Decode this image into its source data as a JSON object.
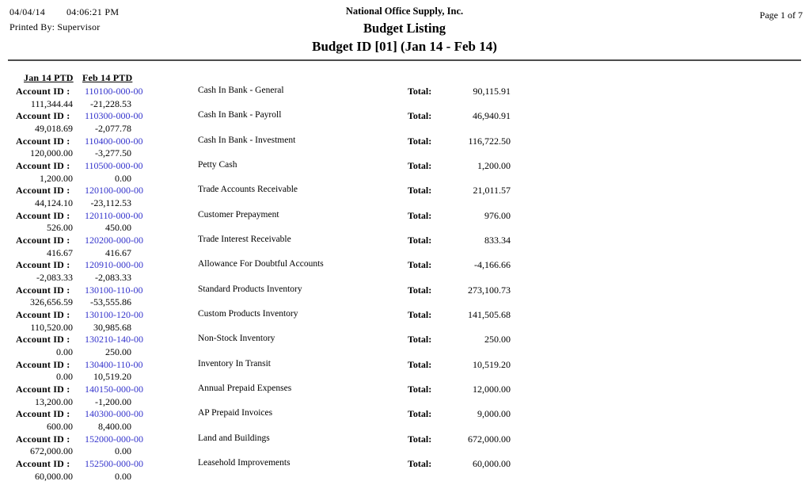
{
  "header": {
    "date": "04/04/14",
    "time": "04:06:21 PM",
    "printed_by": "Printed By: Supervisor",
    "company": "National Office Supply, Inc.",
    "report_title": "Budget Listing",
    "subtitle": "Budget ID [01] (Jan 14 - Feb 14)",
    "page": "Page 1 of 7"
  },
  "columns": {
    "jan": "Jan 14 PTD",
    "feb": "Feb 14 PTD"
  },
  "labels": {
    "account": "Account ID :",
    "total": "Total:"
  },
  "colors": {
    "account_link": "#3333cc",
    "rule": "#4d4d4d"
  },
  "rows": [
    {
      "account_id": "110100-000-00",
      "description": "Cash In Bank - General",
      "total": "90,115.91",
      "jan": "111,344.44",
      "feb": "-21,228.53"
    },
    {
      "account_id": "110300-000-00",
      "description": "Cash In Bank - Payroll",
      "total": "46,940.91",
      "jan": "49,018.69",
      "feb": "-2,077.78"
    },
    {
      "account_id": "110400-000-00",
      "description": "Cash In Bank - Investment",
      "total": "116,722.50",
      "jan": "120,000.00",
      "feb": "-3,277.50"
    },
    {
      "account_id": "110500-000-00",
      "description": "Petty Cash",
      "total": "1,200.00",
      "jan": "1,200.00",
      "feb": "0.00"
    },
    {
      "account_id": "120100-000-00",
      "description": "Trade Accounts Receivable",
      "total": "21,011.57",
      "jan": "44,124.10",
      "feb": "-23,112.53"
    },
    {
      "account_id": "120110-000-00",
      "description": "Customer Prepayment",
      "total": "976.00",
      "jan": "526.00",
      "feb": "450.00"
    },
    {
      "account_id": "120200-000-00",
      "description": "Trade Interest Receivable",
      "total": "833.34",
      "jan": "416.67",
      "feb": "416.67"
    },
    {
      "account_id": "120910-000-00",
      "description": "Allowance For Doubtful Accounts",
      "total": "-4,166.66",
      "jan": "-2,083.33",
      "feb": "-2,083.33"
    },
    {
      "account_id": "130100-110-00",
      "description": "Standard Products Inventory",
      "total": "273,100.73",
      "jan": "326,656.59",
      "feb": "-53,555.86"
    },
    {
      "account_id": "130100-120-00",
      "description": "Custom Products Inventory",
      "total": "141,505.68",
      "jan": "110,520.00",
      "feb": "30,985.68"
    },
    {
      "account_id": "130210-140-00",
      "description": "Non-Stock Inventory",
      "total": "250.00",
      "jan": "0.00",
      "feb": "250.00"
    },
    {
      "account_id": "130400-110-00",
      "description": "Inventory In Transit",
      "total": "10,519.20",
      "jan": "0.00",
      "feb": "10,519.20"
    },
    {
      "account_id": "140150-000-00",
      "description": "Annual Prepaid Expenses",
      "total": "12,000.00",
      "jan": "13,200.00",
      "feb": "-1,200.00"
    },
    {
      "account_id": "140300-000-00",
      "description": "AP Prepaid Invoices",
      "total": "9,000.00",
      "jan": "600.00",
      "feb": "8,400.00"
    },
    {
      "account_id": "152000-000-00",
      "description": "Land and Buildings",
      "total": "672,000.00",
      "jan": "672,000.00",
      "feb": "0.00"
    },
    {
      "account_id": "152500-000-00",
      "description": "Leasehold Improvements",
      "total": "60,000.00",
      "jan": "60,000.00",
      "feb": "0.00"
    }
  ]
}
